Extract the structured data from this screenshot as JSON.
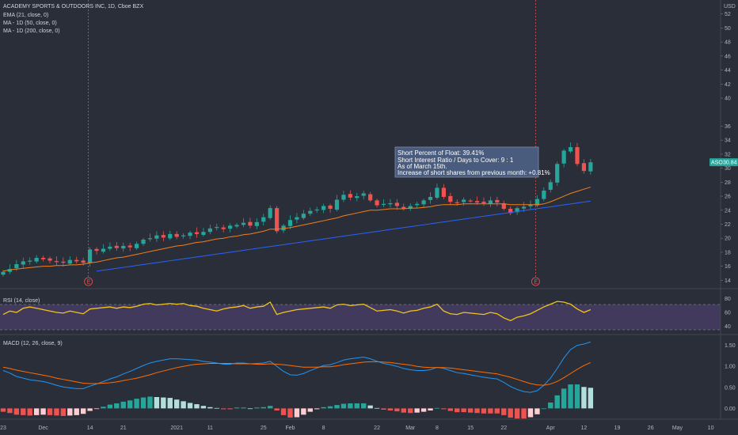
{
  "header": {
    "title": "ACADEMY SPORTS & OUTDOORS INC, 1D, Cboe BZX",
    "currency": "USD",
    "indicators": [
      "EMA (21, close, 0)",
      "MA - 1D (50, close, 0)",
      "MA - 1D (200, close, 0)"
    ]
  },
  "annotation": {
    "lines": [
      "Short Percent of Float: 39.41%",
      "Short Interest Ratio / Days to Cover: 9 : 1",
      "As of March 15th.",
      "Increase of short shares from previous month: +0.81%"
    ]
  },
  "price_tag": {
    "ticker": "ASO",
    "value": "30.84"
  },
  "earnings_marker": "E",
  "colors": {
    "background": "#2a2e39",
    "up": "#26a69a",
    "down": "#ef5350",
    "ema": "#f57f17",
    "ma50": "#2962ff",
    "rsi_line": "#f0c419",
    "rsi_band": "#5b4a79",
    "macd_line": "#2196f3",
    "signal_line": "#ff6d00",
    "hist_up_strong": "#26a69a",
    "hist_up_weak": "#b2dfdb",
    "hist_down_strong": "#ef5350",
    "hist_down_weak": "#ffcdd2"
  },
  "chart_data": [
    {
      "type": "candlestick",
      "title": "ACADEMY SPORTS & OUTDOORS INC, 1D, Cboe BZX",
      "ylabel": "USD",
      "ylim": [
        12.8,
        54
      ],
      "yticks": [
        14,
        16,
        18,
        20,
        22,
        24,
        26,
        28,
        30,
        32,
        34,
        36,
        40,
        42,
        44,
        46,
        48,
        50,
        52
      ],
      "x_ticks": [
        {
          "index": 0,
          "label": "23"
        },
        {
          "index": 6,
          "label": "Dec"
        },
        {
          "index": 13,
          "label": "14"
        },
        {
          "index": 18,
          "label": "21"
        },
        {
          "index": 26,
          "label": "2021"
        },
        {
          "index": 31,
          "label": "11"
        },
        {
          "index": 39,
          "label": "25"
        },
        {
          "index": 43,
          "label": "Feb"
        },
        {
          "index": 48,
          "label": "8"
        },
        {
          "index": 56,
          "label": "22"
        },
        {
          "index": 61,
          "label": "Mar"
        },
        {
          "index": 65,
          "label": "8"
        },
        {
          "index": 70,
          "label": "15"
        },
        {
          "index": 75,
          "label": "22"
        },
        {
          "index": 82,
          "label": "Apr"
        },
        {
          "index": 87,
          "label": "12"
        },
        {
          "index": 92,
          "label": "19"
        },
        {
          "index": 97,
          "label": "26"
        },
        {
          "index": 101,
          "label": "May"
        },
        {
          "index": 106,
          "label": "10"
        }
      ],
      "earnings_at_index": [
        13,
        80
      ],
      "close": [
        15.2,
        15.6,
        16.3,
        16.7,
        16.8,
        17.2,
        17.0,
        16.8,
        16.6,
        16.5,
        16.9,
        16.7,
        16.5,
        18.4,
        18.2,
        18.5,
        18.8,
        18.6,
        18.9,
        18.7,
        19.2,
        19.8,
        20.0,
        20.4,
        20.1,
        20.6,
        20.2,
        20.4,
        20.8,
        20.6,
        20.9,
        21.4,
        21.6,
        21.3,
        21.8,
        21.9,
        22.2,
        21.8,
        22.3,
        23.0,
        24.3,
        21.0,
        21.8,
        22.6,
        23.0,
        23.5,
        23.9,
        24.1,
        24.6,
        24.2,
        25.5,
        26.2,
        25.8,
        26.0,
        26.4,
        25.4,
        24.7,
        24.9,
        25.0,
        24.6,
        24.2,
        24.6,
        24.9,
        25.4,
        25.9,
        27.2,
        25.9,
        25.2,
        25.1,
        25.5,
        25.3,
        25.1,
        25.0,
        25.4,
        25.1,
        24.2,
        23.6,
        24.3,
        24.5,
        24.8,
        25.6,
        26.8,
        28.0,
        30.6,
        32.5,
        33.0,
        30.6,
        29.6,
        30.84
      ],
      "ema21": [
        15.3,
        15.5,
        15.6,
        15.7,
        15.8,
        15.9,
        16.0,
        16.0,
        16.1,
        16.1,
        16.2,
        16.2,
        16.3,
        16.5,
        16.6,
        16.8,
        17.0,
        17.2,
        17.3,
        17.5,
        17.7,
        17.9,
        18.1,
        18.3,
        18.5,
        18.7,
        18.9,
        19.0,
        19.2,
        19.4,
        19.5,
        19.7,
        19.9,
        20.0,
        20.2,
        20.3,
        20.5,
        20.6,
        20.8,
        21.0,
        21.3,
        21.3,
        21.4,
        21.5,
        21.7,
        21.9,
        22.1,
        22.3,
        22.5,
        22.7,
        22.9,
        23.2,
        23.4,
        23.6,
        23.8,
        24.0,
        24.0,
        24.1,
        24.2,
        24.2,
        24.2,
        24.3,
        24.3,
        24.4,
        24.5,
        24.7,
        24.8,
        24.8,
        24.8,
        24.9,
        24.9,
        24.9,
        24.9,
        24.9,
        24.9,
        24.9,
        24.8,
        24.8,
        24.8,
        24.8,
        24.8,
        24.9,
        25.2,
        25.6,
        26.0,
        26.4,
        26.7,
        27.0,
        27.3
      ]
    },
    {
      "type": "line",
      "title": "RSI (14, close)",
      "ylim": [
        30,
        90
      ],
      "yticks": [
        40,
        60,
        80
      ],
      "band": [
        30,
        70
      ],
      "values": [
        57,
        62,
        60,
        66,
        68,
        66,
        64,
        62,
        60,
        59,
        62,
        60,
        58,
        65,
        66,
        67,
        68,
        66,
        68,
        67,
        69,
        72,
        73,
        71,
        72,
        73,
        72,
        73,
        70,
        69,
        66,
        64,
        62,
        65,
        67,
        68,
        70,
        66,
        68,
        69,
        75,
        57,
        60,
        62,
        64,
        65,
        66,
        67,
        68,
        66,
        71,
        72,
        70,
        71,
        72,
        67,
        62,
        63,
        64,
        62,
        59,
        62,
        63,
        66,
        68,
        72,
        62,
        58,
        57,
        60,
        59,
        58,
        57,
        60,
        58,
        52,
        48,
        53,
        55,
        58,
        63,
        68,
        72,
        76,
        75,
        72,
        65,
        60,
        64
      ]
    },
    {
      "type": "line",
      "title": "MACD (12, 26, close, 9)",
      "ylim": [
        -0.2,
        1.7
      ],
      "yticks": [
        0.0,
        0.5,
        1.0,
        1.5
      ],
      "macd": [
        0.9,
        0.84,
        0.76,
        0.72,
        0.68,
        0.66,
        0.64,
        0.6,
        0.55,
        0.51,
        0.49,
        0.47,
        0.47,
        0.53,
        0.58,
        0.64,
        0.7,
        0.75,
        0.82,
        0.88,
        0.95,
        1.02,
        1.08,
        1.12,
        1.15,
        1.18,
        1.18,
        1.17,
        1.16,
        1.15,
        1.12,
        1.1,
        1.08,
        1.05,
        1.05,
        1.08,
        1.08,
        1.06,
        1.07,
        1.08,
        1.12,
        1.0,
        0.88,
        0.8,
        0.79,
        0.83,
        0.9,
        0.96,
        1.02,
        1.04,
        1.09,
        1.15,
        1.18,
        1.2,
        1.22,
        1.18,
        1.12,
        1.07,
        1.04,
        1.0,
        0.95,
        0.92,
        0.9,
        0.9,
        0.92,
        0.98,
        0.95,
        0.9,
        0.85,
        0.83,
        0.8,
        0.77,
        0.74,
        0.72,
        0.7,
        0.62,
        0.52,
        0.45,
        0.4,
        0.38,
        0.42,
        0.55,
        0.72,
        0.95,
        1.2,
        1.4,
        1.5,
        1.53,
        1.58
      ],
      "signal": [
        0.98,
        0.95,
        0.91,
        0.88,
        0.85,
        0.82,
        0.79,
        0.76,
        0.72,
        0.69,
        0.66,
        0.63,
        0.6,
        0.59,
        0.59,
        0.6,
        0.61,
        0.63,
        0.66,
        0.69,
        0.72,
        0.76,
        0.8,
        0.85,
        0.89,
        0.93,
        0.97,
        1.0,
        1.03,
        1.05,
        1.06,
        1.07,
        1.07,
        1.07,
        1.07,
        1.06,
        1.06,
        1.06,
        1.05,
        1.05,
        1.06,
        1.05,
        1.04,
        1.02,
        1.0,
        0.98,
        0.98,
        0.98,
        0.99,
        0.99,
        1.01,
        1.04,
        1.06,
        1.08,
        1.1,
        1.11,
        1.11,
        1.1,
        1.09,
        1.07,
        1.05,
        1.03,
        1.0,
        0.98,
        0.97,
        0.97,
        0.97,
        0.96,
        0.94,
        0.92,
        0.9,
        0.88,
        0.86,
        0.84,
        0.82,
        0.78,
        0.74,
        0.69,
        0.64,
        0.59,
        0.56,
        0.55,
        0.58,
        0.64,
        0.73,
        0.83,
        0.93,
        1.02,
        1.09
      ],
      "histogram": [
        -0.08,
        -0.11,
        -0.15,
        -0.16,
        -0.17,
        -0.16,
        -0.15,
        -0.16,
        -0.17,
        -0.18,
        -0.17,
        -0.16,
        -0.13,
        -0.06,
        -0.01,
        0.04,
        0.09,
        0.12,
        0.16,
        0.19,
        0.23,
        0.26,
        0.28,
        0.27,
        0.26,
        0.25,
        0.21,
        0.17,
        0.13,
        0.1,
        0.06,
        0.03,
        0.01,
        -0.02,
        -0.02,
        0.02,
        0.02,
        0.0,
        0.02,
        0.03,
        0.06,
        -0.05,
        -0.16,
        -0.22,
        -0.21,
        -0.15,
        -0.08,
        -0.02,
        0.03,
        0.05,
        0.08,
        0.11,
        0.12,
        0.12,
        0.12,
        0.07,
        0.01,
        -0.03,
        -0.05,
        -0.07,
        -0.1,
        -0.11,
        -0.1,
        -0.08,
        -0.05,
        0.01,
        -0.02,
        -0.06,
        -0.09,
        -0.09,
        -0.1,
        -0.11,
        -0.12,
        -0.12,
        -0.12,
        -0.16,
        -0.22,
        -0.24,
        -0.24,
        -0.21,
        -0.14,
        0.0,
        0.14,
        0.31,
        0.47,
        0.57,
        0.57,
        0.51,
        0.49
      ]
    }
  ]
}
